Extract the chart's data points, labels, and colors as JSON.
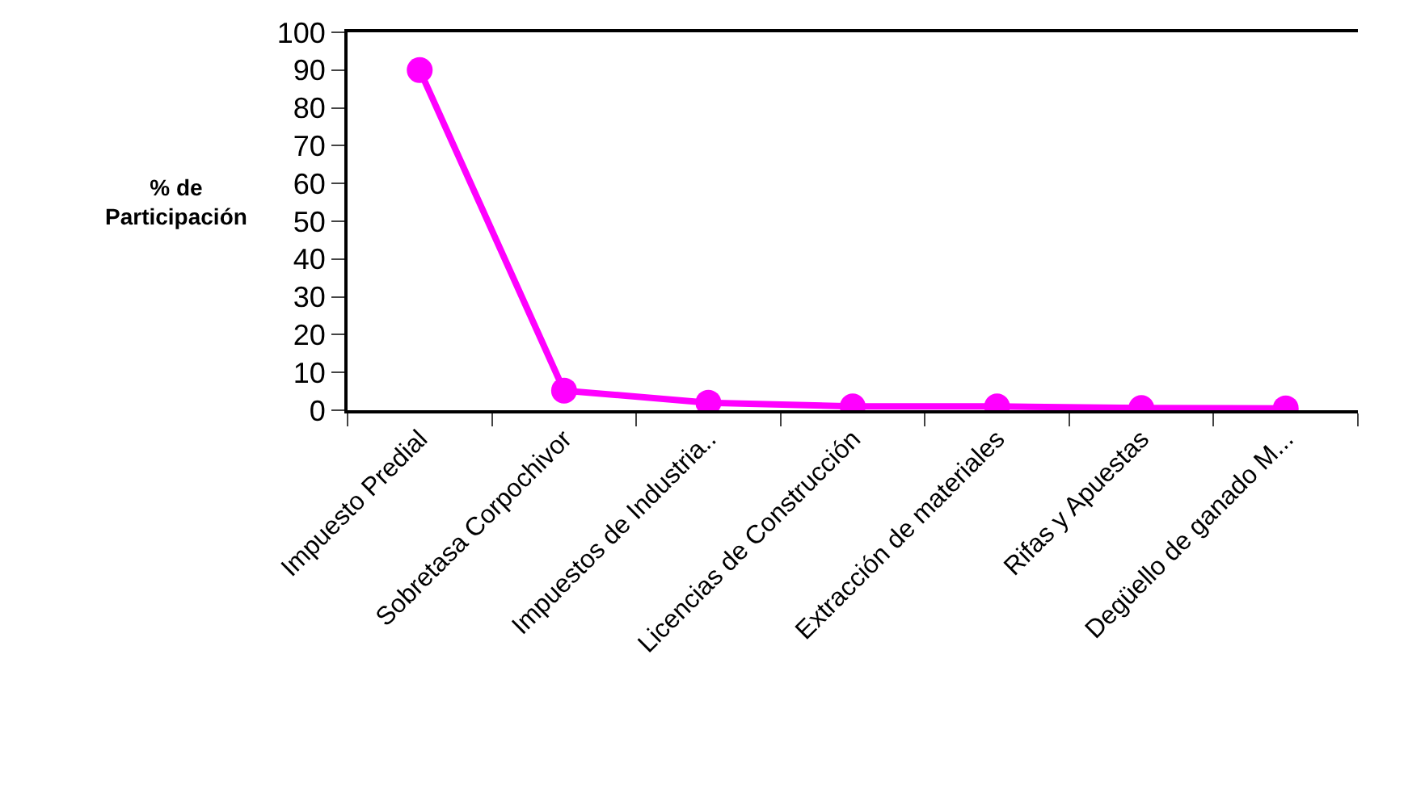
{
  "chart_data": {
    "type": "line",
    "ylabel": "% de\nParticipación",
    "categories": [
      "Impuesto Predial",
      "Sobretasa Corpochivor",
      "Impuestos de Industria..",
      "Licencias de Construcción",
      "Extracción de materiales",
      "Rifas y Apuestas",
      "Degüello de ganado M..."
    ],
    "series": [
      {
        "color": "#ff00ff",
        "values": [
          90,
          5.2,
          2,
          1,
          1,
          0.6,
          0.5
        ]
      }
    ],
    "ylim": [
      0,
      100
    ],
    "yticks": [
      0,
      10,
      20,
      30,
      40,
      50,
      60,
      70,
      80,
      90,
      100
    ],
    "grid": false,
    "legend": false,
    "marker": "circle",
    "line_style": "solid"
  }
}
